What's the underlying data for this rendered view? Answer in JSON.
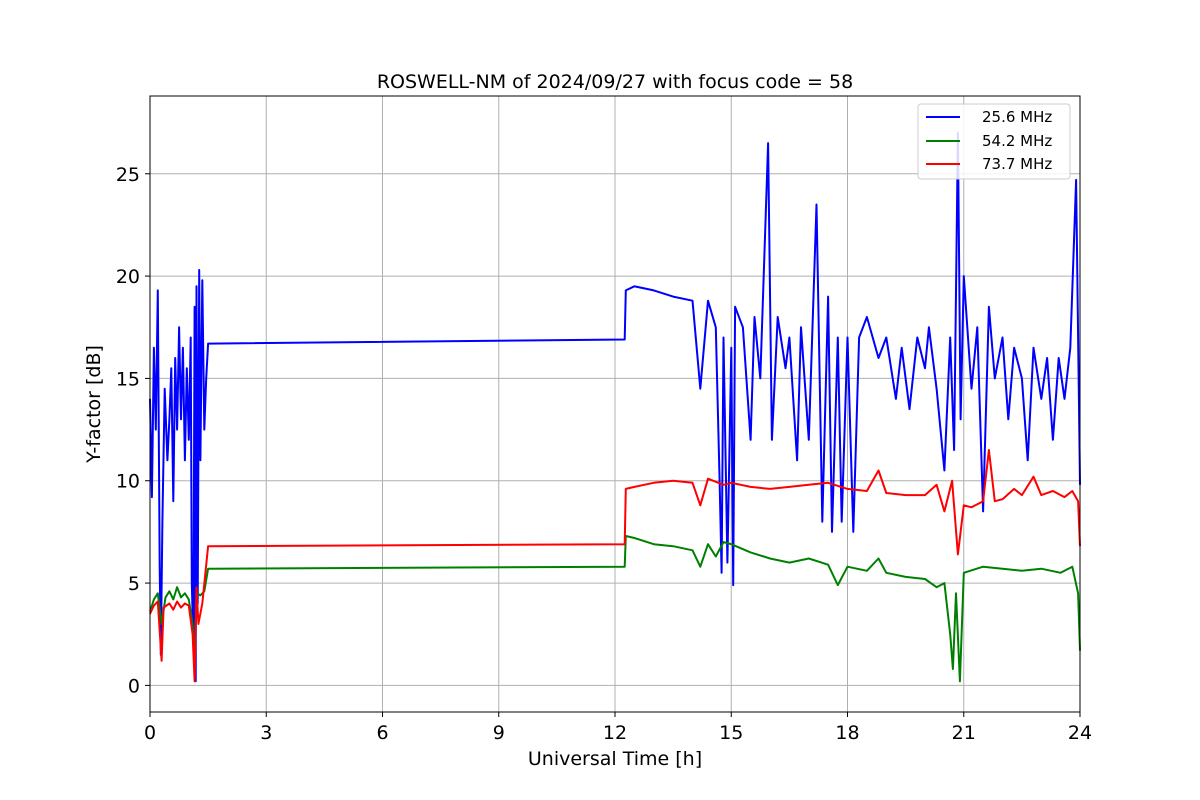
{
  "chart_data": {
    "type": "line",
    "title": "ROSWELL-NM of 2024/09/27 with focus code = 58",
    "xlabel": "Universal Time [h]",
    "ylabel": "Y-factor [dB]",
    "xlim": [
      0,
      24
    ],
    "ylim": [
      -1.3,
      28.8
    ],
    "x_ticks": [
      "0",
      "3",
      "6",
      "9",
      "12",
      "15",
      "18",
      "21",
      "24"
    ],
    "y_ticks": [
      "0",
      "5",
      "10",
      "15",
      "20",
      "25"
    ],
    "grid": true,
    "legend_position": "top-right",
    "series": [
      {
        "name": "25.6 MHz",
        "color": "#0000ff",
        "points": [
          [
            0.0,
            14.0
          ],
          [
            0.05,
            9.2
          ],
          [
            0.1,
            16.5
          ],
          [
            0.15,
            12.5
          ],
          [
            0.2,
            19.3
          ],
          [
            0.25,
            5.8
          ],
          [
            0.28,
            1.5
          ],
          [
            0.32,
            8.0
          ],
          [
            0.38,
            14.5
          ],
          [
            0.45,
            11.0
          ],
          [
            0.5,
            13.0
          ],
          [
            0.55,
            15.5
          ],
          [
            0.6,
            9.0
          ],
          [
            0.65,
            16.0
          ],
          [
            0.7,
            12.5
          ],
          [
            0.75,
            17.5
          ],
          [
            0.8,
            13.0
          ],
          [
            0.85,
            16.5
          ],
          [
            0.9,
            11.0
          ],
          [
            0.95,
            15.5
          ],
          [
            1.0,
            12.0
          ],
          [
            1.05,
            17.0
          ],
          [
            1.08,
            5.0
          ],
          [
            1.12,
            2.0
          ],
          [
            1.15,
            18.5
          ],
          [
            1.18,
            0.2
          ],
          [
            1.2,
            19.5
          ],
          [
            1.23,
            4.0
          ],
          [
            1.27,
            20.3
          ],
          [
            1.3,
            11.0
          ],
          [
            1.35,
            19.8
          ],
          [
            1.4,
            12.5
          ],
          [
            1.45,
            15.0
          ],
          [
            1.5,
            16.7
          ],
          [
            12.25,
            16.9
          ],
          [
            12.28,
            19.3
          ],
          [
            12.5,
            19.5
          ],
          [
            13.0,
            19.3
          ],
          [
            13.5,
            19.0
          ],
          [
            14.0,
            18.8
          ],
          [
            14.2,
            14.5
          ],
          [
            14.4,
            18.8
          ],
          [
            14.6,
            17.5
          ],
          [
            14.7,
            10.0
          ],
          [
            14.75,
            5.5
          ],
          [
            14.8,
            17.0
          ],
          [
            14.9,
            6.0
          ],
          [
            15.0,
            16.5
          ],
          [
            15.05,
            4.9
          ],
          [
            15.1,
            18.5
          ],
          [
            15.3,
            17.5
          ],
          [
            15.5,
            12.0
          ],
          [
            15.6,
            18.0
          ],
          [
            15.75,
            15.0
          ],
          [
            15.95,
            26.5
          ],
          [
            16.05,
            12.0
          ],
          [
            16.2,
            18.0
          ],
          [
            16.4,
            15.5
          ],
          [
            16.5,
            17.0
          ],
          [
            16.7,
            11.0
          ],
          [
            16.8,
            17.5
          ],
          [
            17.0,
            12.0
          ],
          [
            17.2,
            23.5
          ],
          [
            17.35,
            8.0
          ],
          [
            17.5,
            19.0
          ],
          [
            17.6,
            7.5
          ],
          [
            17.75,
            17.0
          ],
          [
            17.85,
            8.0
          ],
          [
            18.0,
            17.0
          ],
          [
            18.15,
            7.5
          ],
          [
            18.3,
            17.0
          ],
          [
            18.5,
            18.0
          ],
          [
            18.8,
            16.0
          ],
          [
            19.0,
            17.0
          ],
          [
            19.25,
            14.0
          ],
          [
            19.4,
            16.5
          ],
          [
            19.6,
            13.5
          ],
          [
            19.8,
            17.0
          ],
          [
            20.0,
            15.5
          ],
          [
            20.1,
            17.5
          ],
          [
            20.3,
            14.5
          ],
          [
            20.5,
            10.5
          ],
          [
            20.65,
            17.0
          ],
          [
            20.75,
            11.5
          ],
          [
            20.85,
            27.0
          ],
          [
            20.92,
            13.0
          ],
          [
            21.0,
            20.0
          ],
          [
            21.2,
            14.5
          ],
          [
            21.35,
            17.5
          ],
          [
            21.5,
            8.5
          ],
          [
            21.65,
            18.5
          ],
          [
            21.8,
            15.0
          ],
          [
            22.0,
            17.0
          ],
          [
            22.15,
            13.0
          ],
          [
            22.3,
            16.5
          ],
          [
            22.5,
            15.0
          ],
          [
            22.65,
            11.0
          ],
          [
            22.8,
            16.5
          ],
          [
            23.0,
            14.0
          ],
          [
            23.15,
            16.0
          ],
          [
            23.3,
            12.0
          ],
          [
            23.45,
            16.0
          ],
          [
            23.6,
            14.0
          ],
          [
            23.75,
            16.5
          ],
          [
            23.9,
            24.7
          ],
          [
            24.0,
            9.8
          ]
        ]
      },
      {
        "name": "54.2 MHz",
        "color": "#008000",
        "points": [
          [
            0.0,
            3.6
          ],
          [
            0.1,
            4.2
          ],
          [
            0.2,
            4.5
          ],
          [
            0.3,
            3.0
          ],
          [
            0.4,
            4.3
          ],
          [
            0.5,
            4.6
          ],
          [
            0.6,
            4.2
          ],
          [
            0.7,
            4.8
          ],
          [
            0.8,
            4.3
          ],
          [
            0.9,
            4.5
          ],
          [
            1.0,
            4.2
          ],
          [
            1.1,
            3.0
          ],
          [
            1.15,
            0.8
          ],
          [
            1.2,
            4.5
          ],
          [
            1.3,
            4.4
          ],
          [
            1.4,
            4.6
          ],
          [
            1.5,
            5.7
          ],
          [
            12.25,
            5.8
          ],
          [
            12.28,
            7.3
          ],
          [
            12.5,
            7.2
          ],
          [
            13.0,
            6.9
          ],
          [
            13.5,
            6.8
          ],
          [
            14.0,
            6.6
          ],
          [
            14.2,
            5.8
          ],
          [
            14.4,
            6.9
          ],
          [
            14.6,
            6.3
          ],
          [
            14.8,
            7.0
          ],
          [
            15.0,
            6.9
          ],
          [
            15.5,
            6.5
          ],
          [
            16.0,
            6.2
          ],
          [
            16.5,
            6.0
          ],
          [
            17.0,
            6.2
          ],
          [
            17.5,
            5.9
          ],
          [
            17.75,
            4.9
          ],
          [
            18.0,
            5.8
          ],
          [
            18.5,
            5.6
          ],
          [
            18.8,
            6.2
          ],
          [
            19.0,
            5.5
          ],
          [
            19.5,
            5.3
          ],
          [
            20.0,
            5.2
          ],
          [
            20.3,
            4.8
          ],
          [
            20.5,
            5.0
          ],
          [
            20.65,
            2.5
          ],
          [
            20.72,
            0.8
          ],
          [
            20.8,
            4.5
          ],
          [
            20.9,
            0.2
          ],
          [
            21.0,
            5.5
          ],
          [
            21.5,
            5.8
          ],
          [
            22.0,
            5.7
          ],
          [
            22.5,
            5.6
          ],
          [
            23.0,
            5.7
          ],
          [
            23.5,
            5.5
          ],
          [
            23.8,
            5.8
          ],
          [
            23.95,
            4.5
          ],
          [
            24.0,
            1.7
          ]
        ]
      },
      {
        "name": "73.7 MHz",
        "color": "#ff0000",
        "points": [
          [
            0.0,
            3.5
          ],
          [
            0.1,
            3.9
          ],
          [
            0.2,
            4.1
          ],
          [
            0.3,
            1.2
          ],
          [
            0.35,
            3.8
          ],
          [
            0.5,
            4.0
          ],
          [
            0.6,
            3.7
          ],
          [
            0.7,
            4.1
          ],
          [
            0.8,
            3.8
          ],
          [
            0.9,
            4.0
          ],
          [
            1.0,
            3.9
          ],
          [
            1.1,
            2.5
          ],
          [
            1.15,
            0.2
          ],
          [
            1.2,
            4.8
          ],
          [
            1.25,
            3.0
          ],
          [
            1.35,
            4.0
          ],
          [
            1.5,
            6.8
          ],
          [
            12.25,
            6.9
          ],
          [
            12.28,
            9.6
          ],
          [
            12.5,
            9.7
          ],
          [
            13.0,
            9.9
          ],
          [
            13.5,
            10.0
          ],
          [
            14.0,
            9.9
          ],
          [
            14.2,
            8.8
          ],
          [
            14.4,
            10.1
          ],
          [
            14.8,
            9.8
          ],
          [
            15.0,
            9.9
          ],
          [
            15.5,
            9.7
          ],
          [
            16.0,
            9.6
          ],
          [
            16.5,
            9.7
          ],
          [
            17.0,
            9.8
          ],
          [
            17.5,
            9.9
          ],
          [
            18.0,
            9.6
          ],
          [
            18.5,
            9.5
          ],
          [
            18.8,
            10.5
          ],
          [
            19.0,
            9.4
          ],
          [
            19.5,
            9.3
          ],
          [
            20.0,
            9.3
          ],
          [
            20.3,
            9.8
          ],
          [
            20.5,
            8.5
          ],
          [
            20.7,
            10.0
          ],
          [
            20.85,
            6.4
          ],
          [
            21.0,
            8.8
          ],
          [
            21.2,
            8.7
          ],
          [
            21.5,
            9.0
          ],
          [
            21.65,
            11.5
          ],
          [
            21.8,
            9.0
          ],
          [
            22.0,
            9.1
          ],
          [
            22.3,
            9.6
          ],
          [
            22.5,
            9.3
          ],
          [
            22.8,
            10.2
          ],
          [
            23.0,
            9.3
          ],
          [
            23.3,
            9.5
          ],
          [
            23.6,
            9.2
          ],
          [
            23.8,
            9.5
          ],
          [
            23.95,
            9.0
          ],
          [
            24.0,
            6.8
          ]
        ]
      }
    ]
  }
}
